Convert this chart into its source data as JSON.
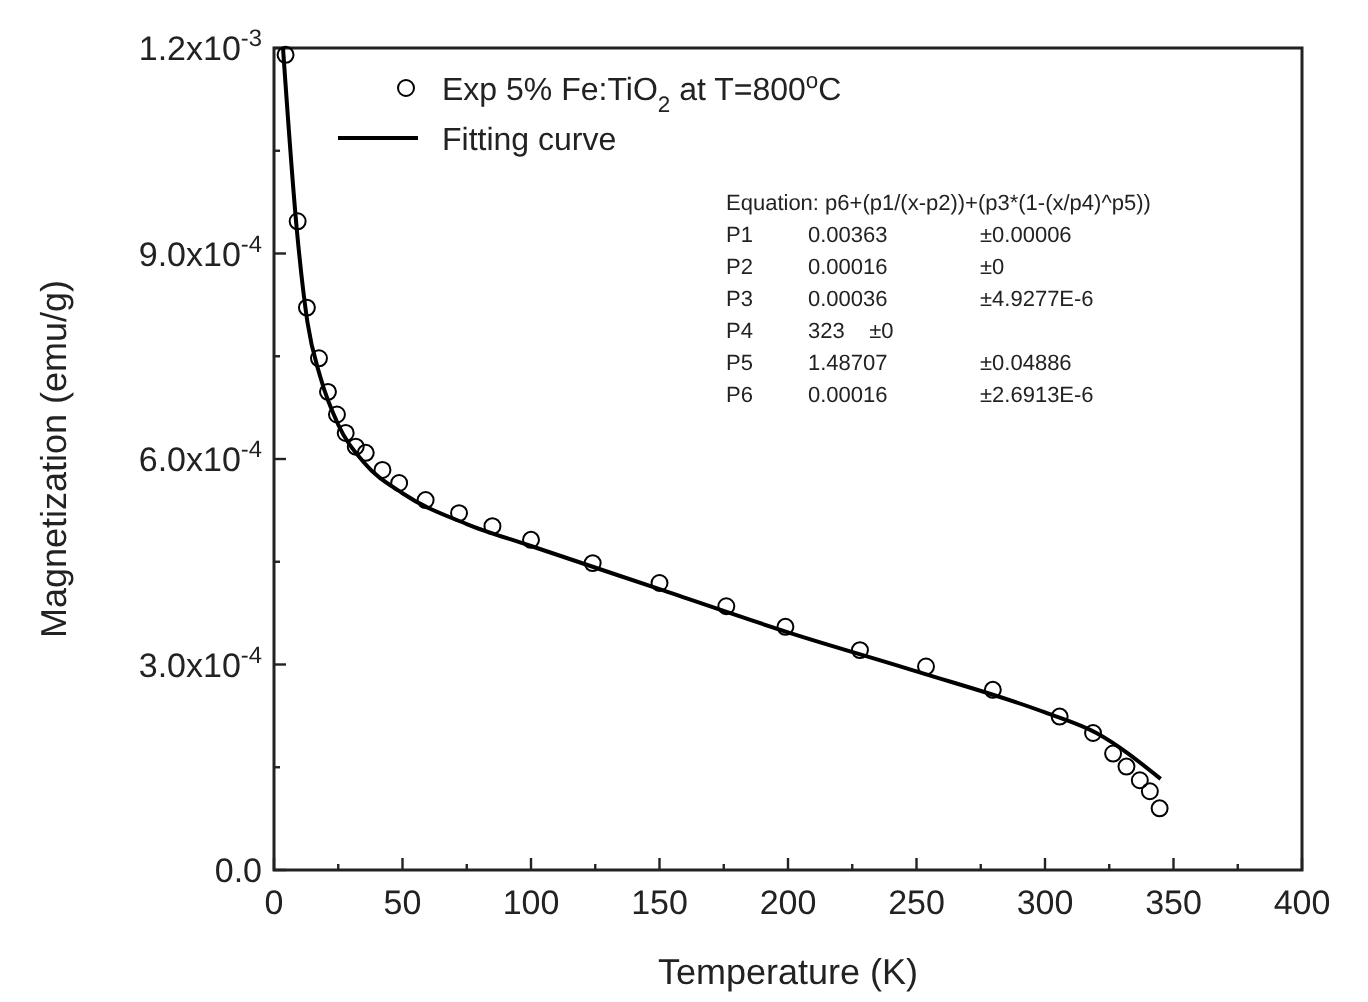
{
  "chart_data": {
    "type": "scatter",
    "xlabel": "Temperature (K)",
    "ylabel": "Magnetization (emu/g)",
    "xlim": [
      0,
      400
    ],
    "ylim": [
      0,
      0.0012
    ],
    "xticks": [
      0,
      {
        "value": 25,
        "label": null
      },
      50,
      {
        "value": 75,
        "label": null
      },
      100,
      {
        "value": 125,
        "label": null
      },
      150,
      {
        "value": 175,
        "label": null
      },
      200,
      {
        "value": 225,
        "label": null
      },
      250,
      {
        "value": 275,
        "label": null
      },
      300,
      {
        "value": 325,
        "label": null
      },
      350,
      {
        "value": 375,
        "label": null
      },
      400
    ],
    "yticks": [
      {
        "value": 0,
        "label": "0.0"
      },
      {
        "value": 0.00015,
        "label": null
      },
      {
        "value": 0.0003,
        "label": "3.0x10$^{-4}$"
      },
      {
        "value": 0.00045,
        "label": null
      },
      {
        "value": 0.0006,
        "label": "6.0x10$^{-4}$"
      },
      {
        "value": 0.00075,
        "label": null
      },
      {
        "value": 0.0009,
        "label": "9.0x10$^{-4}$"
      },
      {
        "value": 0.00105,
        "label": null
      },
      {
        "value": 0.0012,
        "label": "1.2x10$^{-3}$"
      }
    ],
    "legend": "top left",
    "grid": false,
    "series": [
      {
        "name": "Exp 5% Fe:TiO$_{2}$ at T=800$^{o}$C",
        "marker": "circle",
        "color": "#000000",
        "x": [
          4.5,
          9.2,
          12.8,
          17.5,
          21,
          24.5,
          27.9,
          31.8,
          35.7,
          42.2,
          48.7,
          59,
          72,
          85,
          100,
          124,
          150,
          176,
          199,
          228,
          253.7,
          279.7,
          305.7,
          318.7,
          326.5,
          331.7,
          336.9,
          340.8,
          344.6
        ],
        "values": [
          0.00119,
          0.000947,
          0.000821,
          0.000747,
          0.000698,
          0.000665,
          0.000638,
          0.000618,
          0.000609,
          0.000584,
          0.000565,
          0.00054,
          0.000521,
          0.000502,
          0.000482,
          0.000448,
          0.000419,
          0.000385,
          0.000355,
          0.000321,
          0.000297,
          0.000263,
          0.000224,
          0.0002,
          0.00017,
          0.000151,
          0.000131,
          0.000115,
          9e-05
        ]
      },
      {
        "name": "Fitting curve",
        "type": "line",
        "line_style": "solid",
        "color": "#000000",
        "x": [
          3.5,
          9,
          13,
          18,
          25,
          35,
          50,
          75,
          100,
          150,
          200,
          250,
          300,
          320,
          345
        ],
        "values": [
          0.0012,
          0.00093,
          0.0008,
          0.00072,
          0.00065,
          0.000595,
          0.00055,
          0.000505,
          0.000473,
          0.00041,
          0.000347,
          0.00029,
          0.00023,
          0.0002,
          0.000133
        ]
      }
    ],
    "annotations": [
      "Equation: p6+(p1/(x-p2))+(p3*(1-(x/p4)^p5))",
      "P1\t0.00363\t±0.00006",
      "P2\t0.00016\t±0",
      "P3\t0.00036\t±4.9277E-6",
      "P4\t323    ±0",
      "P5\t1.48707\t±0.04886",
      "P6\t0.00016\t±2.6913E-6"
    ]
  }
}
